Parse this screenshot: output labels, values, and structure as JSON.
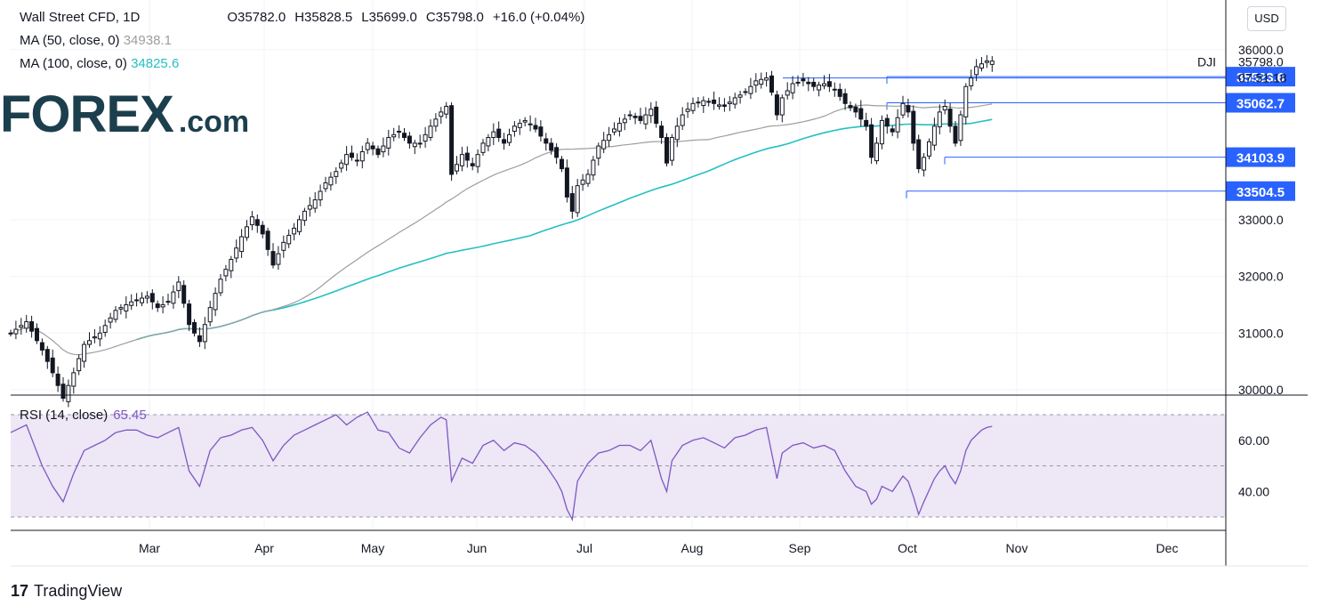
{
  "header": {
    "symbol": "Wall Street CFD, 1D",
    "open": "O35782.0",
    "high": "H35828.5",
    "low": "L35699.0",
    "close": "C35798.0",
    "change": "+16.0 (+0.04%)",
    "ma50_label": "MA (50, close, 0)",
    "ma50_value": "34938.1",
    "ma100_label": "MA (100, close, 0)",
    "ma100_value": "34825.6",
    "currency": "USD"
  },
  "rsi": {
    "label": "RSI (14, close)",
    "value": "65.45"
  },
  "logo": {
    "brand": "FOREX",
    "domain": ".com"
  },
  "footer": {
    "brand": "TradingView"
  },
  "colors": {
    "up": "#131722",
    "ma50": "#9e9e9e",
    "ma100": "#26bfc4",
    "rsi": "#7e57c2",
    "level": "#2962ff",
    "rsi_band": "#ede7f6"
  },
  "chart_data": {
    "type": "candlestick",
    "title": "Wall Street CFD, 1D",
    "y_ticks": [
      30000,
      31000,
      32000,
      33000,
      36000
    ],
    "y_tick_labels": [
      "30000.0",
      "31000.0",
      "32000.0",
      "33000.0",
      "36000.0"
    ],
    "x_labels": [
      "Mar",
      "Apr",
      "May",
      "Jun",
      "Jul",
      "Aug",
      "Sep",
      "Oct",
      "Nov",
      "Dec"
    ],
    "last_price": {
      "value": 35798.0,
      "label": "35798.0",
      "tag": "DJI",
      "countdown": "07:51:18"
    },
    "levels": [
      {
        "value": 35523.6,
        "label": "35523.6"
      },
      {
        "value": 35062.7,
        "label": "35062.7"
      },
      {
        "value": 34103.9,
        "label": "34103.9"
      },
      {
        "value": 33504.5,
        "label": "33504.5"
      }
    ],
    "close_path": [
      [
        0,
        31000
      ],
      [
        3,
        31200
      ],
      [
        6,
        30700
      ],
      [
        8,
        30300
      ],
      [
        10,
        29850
      ],
      [
        12,
        30300
      ],
      [
        14,
        30800
      ],
      [
        17,
        31000
      ],
      [
        20,
        31400
      ],
      [
        23,
        31550
      ],
      [
        26,
        31650
      ],
      [
        28,
        31450
      ],
      [
        30,
        31550
      ],
      [
        32,
        31900
      ],
      [
        34,
        31150
      ],
      [
        36,
        30850
      ],
      [
        38,
        31450
      ],
      [
        40,
        31950
      ],
      [
        42,
        32300
      ],
      [
        44,
        32700
      ],
      [
        46,
        33050
      ],
      [
        48,
        32750
      ],
      [
        50,
        32200
      ],
      [
        52,
        32600
      ],
      [
        54,
        32850
      ],
      [
        56,
        33150
      ],
      [
        58,
        33350
      ],
      [
        60,
        33650
      ],
      [
        62,
        33850
      ],
      [
        64,
        34150
      ],
      [
        66,
        34050
      ],
      [
        68,
        34350
      ],
      [
        70,
        34150
      ],
      [
        72,
        34450
      ],
      [
        74,
        34550
      ],
      [
        76,
        34350
      ],
      [
        78,
        34350
      ],
      [
        80,
        34650
      ],
      [
        82,
        34900
      ],
      [
        83,
        35000
      ],
      [
        84,
        33800
      ],
      [
        86,
        34150
      ],
      [
        88,
        33950
      ],
      [
        90,
        34350
      ],
      [
        92,
        34550
      ],
      [
        94,
        34350
      ],
      [
        96,
        34650
      ],
      [
        98,
        34750
      ],
      [
        100,
        34600
      ],
      [
        102,
        34350
      ],
      [
        104,
        34100
      ],
      [
        105,
        33900
      ],
      [
        106,
        33400
      ],
      [
        107,
        33150
      ],
      [
        108,
        33600
      ],
      [
        110,
        33800
      ],
      [
        112,
        34300
      ],
      [
        114,
        34500
      ],
      [
        116,
        34700
      ],
      [
        118,
        34850
      ],
      [
        120,
        34750
      ],
      [
        122,
        34950
      ],
      [
        124,
        34450
      ],
      [
        125,
        34000
      ],
      [
        126,
        34450
      ],
      [
        128,
        34850
      ],
      [
        130,
        35050
      ],
      [
        132,
        35100
      ],
      [
        134,
        35050
      ],
      [
        136,
        35000
      ],
      [
        138,
        35150
      ],
      [
        140,
        35250
      ],
      [
        142,
        35450
      ],
      [
        144,
        35500
      ],
      [
        145,
        35250
      ],
      [
        146,
        34850
      ],
      [
        147,
        35150
      ],
      [
        149,
        35400
      ],
      [
        151,
        35450
      ],
      [
        153,
        35350
      ],
      [
        155,
        35400
      ],
      [
        157,
        35300
      ],
      [
        159,
        35050
      ],
      [
        161,
        34900
      ],
      [
        163,
        34650
      ],
      [
        164,
        34100
      ],
      [
        165,
        34350
      ],
      [
        166,
        34750
      ],
      [
        168,
        34550
      ],
      [
        170,
        35050
      ],
      [
        171,
        34900
      ],
      [
        172,
        34350
      ],
      [
        173,
        33900
      ],
      [
        174,
        34100
      ],
      [
        176,
        34650
      ],
      [
        177,
        34900
      ],
      [
        178,
        35000
      ],
      [
        179,
        34650
      ],
      [
        180,
        34350
      ],
      [
        181,
        34850
      ],
      [
        182,
        35350
      ],
      [
        183,
        35500
      ],
      [
        184,
        35700
      ],
      [
        185,
        35750
      ],
      [
        186,
        35800
      ],
      [
        187,
        35798
      ]
    ],
    "rsi_path": [
      [
        0,
        63
      ],
      [
        3,
        66
      ],
      [
        6,
        50
      ],
      [
        8,
        42
      ],
      [
        10,
        36
      ],
      [
        12,
        47
      ],
      [
        14,
        56
      ],
      [
        16,
        58
      ],
      [
        18,
        60
      ],
      [
        20,
        63
      ],
      [
        22,
        64
      ],
      [
        24,
        64
      ],
      [
        26,
        62
      ],
      [
        28,
        61
      ],
      [
        30,
        63
      ],
      [
        32,
        65
      ],
      [
        34,
        48
      ],
      [
        36,
        42
      ],
      [
        38,
        56
      ],
      [
        40,
        61
      ],
      [
        42,
        62
      ],
      [
        44,
        64
      ],
      [
        46,
        65
      ],
      [
        48,
        60
      ],
      [
        50,
        52
      ],
      [
        52,
        58
      ],
      [
        54,
        62
      ],
      [
        56,
        64
      ],
      [
        58,
        66
      ],
      [
        60,
        68
      ],
      [
        62,
        70
      ],
      [
        64,
        66
      ],
      [
        66,
        69
      ],
      [
        68,
        71
      ],
      [
        70,
        64
      ],
      [
        72,
        63
      ],
      [
        74,
        57
      ],
      [
        76,
        55
      ],
      [
        78,
        61
      ],
      [
        80,
        66
      ],
      [
        82,
        69
      ],
      [
        83,
        68
      ],
      [
        84,
        44
      ],
      [
        86,
        53
      ],
      [
        88,
        51
      ],
      [
        90,
        58
      ],
      [
        92,
        60
      ],
      [
        94,
        56
      ],
      [
        96,
        59
      ],
      [
        98,
        58
      ],
      [
        100,
        55
      ],
      [
        102,
        50
      ],
      [
        104,
        44
      ],
      [
        105,
        40
      ],
      [
        106,
        33
      ],
      [
        107,
        29
      ],
      [
        108,
        44
      ],
      [
        110,
        51
      ],
      [
        112,
        55
      ],
      [
        114,
        56
      ],
      [
        116,
        58
      ],
      [
        118,
        58
      ],
      [
        120,
        56
      ],
      [
        122,
        60
      ],
      [
        124,
        45
      ],
      [
        125,
        40
      ],
      [
        126,
        52
      ],
      [
        128,
        58
      ],
      [
        130,
        60
      ],
      [
        132,
        61
      ],
      [
        134,
        59
      ],
      [
        136,
        57
      ],
      [
        138,
        61
      ],
      [
        140,
        62
      ],
      [
        142,
        64
      ],
      [
        144,
        65
      ],
      [
        145,
        55
      ],
      [
        146,
        45
      ],
      [
        147,
        55
      ],
      [
        149,
        58
      ],
      [
        151,
        59
      ],
      [
        153,
        57
      ],
      [
        155,
        58
      ],
      [
        157,
        56
      ],
      [
        159,
        48
      ],
      [
        161,
        42
      ],
      [
        163,
        40
      ],
      [
        164,
        35
      ],
      [
        165,
        37
      ],
      [
        166,
        42
      ],
      [
        168,
        40
      ],
      [
        170,
        46
      ],
      [
        171,
        44
      ],
      [
        172,
        38
      ],
      [
        173,
        31
      ],
      [
        174,
        36
      ],
      [
        176,
        45
      ],
      [
        177,
        48
      ],
      [
        178,
        50
      ],
      [
        179,
        46
      ],
      [
        180,
        43
      ],
      [
        181,
        48
      ],
      [
        182,
        56
      ],
      [
        183,
        60
      ],
      [
        184,
        62
      ],
      [
        185,
        64
      ],
      [
        186,
        65
      ],
      [
        187,
        65.45
      ]
    ],
    "rsi_bands": [
      70,
      50,
      30
    ],
    "rsi_tick_labels": [
      "60.00",
      "40.00"
    ],
    "rsi_ticks": [
      60,
      40
    ]
  }
}
